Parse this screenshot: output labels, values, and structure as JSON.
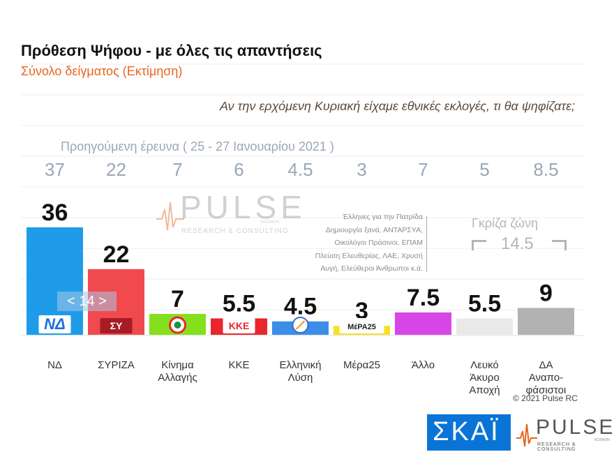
{
  "header": {
    "title": "Πρόθεση Ψήφου - με όλες τις απαντήσεις",
    "subtitle": "Σύνολο δείγματος   (Εκτίμηση)",
    "question": "Αν την ερχόμενη Κυριακή είχαμε εθνικές εκλογές, τι θα ψηφίζατε;",
    "previous_survey_label": "Προηγούμενη έρευνα  ( 25 - 27  Ιανουαρίου  2021 )"
  },
  "watermark": {
    "brand": "PULSE",
    "tagline": "RESEARCH & CONSULTING",
    "sub": "ΚΟΣΜΟΝ"
  },
  "annotations": {
    "others_note": [
      "Έλληνες για την Πατρίδα",
      "Δημιουργία ξανά, ΑΝΤΑΡΣΥΑ,",
      "Οικολόγοι Πράσινοι, ΕΠΑΜ",
      "Πλεύση Ελευθερίας, ΛΑΕ, Χρυσή",
      "Αυγή, Ελεύθεροι Άνθρωποι κ.ά."
    ],
    "gray_zone_label": "Γκρίζα ζώνη",
    "gray_zone_value": "14.5",
    "nd_badge": "< 14 >"
  },
  "chart_data": {
    "type": "bar",
    "title": "Πρόθεση Ψήφου - με όλες τις απαντήσεις",
    "categories": [
      "ΝΔ",
      "ΣΥΡΙΖΑ",
      "Κίνημα Αλλαγής",
      "ΚΚΕ",
      "Ελληνική Λύση",
      "Μέρα25",
      "Άλλο",
      "Λευκό Άκυρο Αποχή",
      "ΔΑ Αναποφάσιστοι"
    ],
    "category_lines": [
      [
        "ΝΔ"
      ],
      [
        "ΣΥΡΙΖΑ"
      ],
      [
        "Κίνημα",
        "Αλλαγής"
      ],
      [
        "ΚΚΕ"
      ],
      [
        "Ελληνική",
        "Λύση"
      ],
      [
        "Μέρα25"
      ],
      [
        "Άλλο"
      ],
      [
        "Λευκό",
        "Άκυρο",
        "Αποχή"
      ],
      [
        "ΔΑ",
        "Αναπο-",
        "φάσιστοι"
      ]
    ],
    "series": [
      {
        "name": "",
        "values": [
          36,
          22,
          7,
          5.5,
          4.5,
          3,
          7.5,
          5.5,
          9
        ],
        "labels": [
          "36",
          "22",
          "7",
          "5.5",
          "4.5",
          "3",
          "7.5",
          "5.5",
          "9"
        ]
      },
      {
        "name": "Προηγούμενη έρευνα",
        "values": [
          37,
          22,
          7,
          6,
          4.5,
          3,
          7,
          5,
          8.5
        ],
        "labels": [
          "37",
          "22",
          "7",
          "6",
          "4.5",
          "3",
          "7",
          "5",
          "8.5"
        ]
      }
    ],
    "colors": [
      "#1e9be9",
      "#f04a4e",
      "#84e01c",
      "#e8262c",
      "#3a8ee8",
      "#f7e01e",
      "#d946e8",
      "#e9e9e9",
      "#b2b2b2"
    ],
    "logos": [
      "ΝΔ",
      "ΣΥ",
      "",
      "ΚΚΕ",
      "",
      "ΜέΡΑ25",
      "",
      "",
      ""
    ],
    "ylim": [
      0,
      40
    ],
    "grid": true
  },
  "footer": {
    "copyright": "© 2021 Pulse RC",
    "skai_logo": "ΣΚΑΪ",
    "pulse_logo": "PULSE",
    "pulse_tagline": "RESEARCH & CONSULTING",
    "pulse_sub": "ΚΟΣΜΟΝ"
  }
}
